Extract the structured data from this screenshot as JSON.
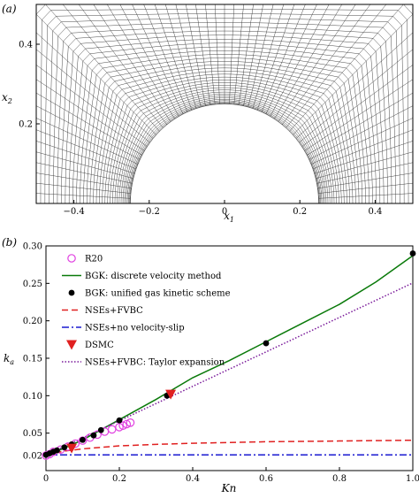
{
  "panel_a": {
    "tag": "(a)",
    "xlabel_base": "x",
    "xlabel_sub": "1",
    "ylabel_base": "x",
    "ylabel_sub": "2",
    "xlim": [
      -0.5,
      0.5
    ],
    "ylim": [
      0.0,
      0.5
    ],
    "xticks": [
      -0.4,
      -0.2,
      0,
      0.2,
      0.4
    ],
    "xtick_labels": [
      "−0.4",
      "−0.2",
      "0",
      "0.2",
      "0.4"
    ],
    "yticks": [
      0.2,
      0.4
    ],
    "ytick_labels": [
      "0.2",
      "0.4"
    ],
    "circle_radius": 0.25,
    "mesh_n_radial": 34,
    "mesh_n_angular": 62
  },
  "chart_data": {
    "type": "line",
    "tag": "(b)",
    "xlabel": "Kn",
    "ylabel_base": "k",
    "ylabel_sub": "a",
    "xlim": [
      0,
      1.0
    ],
    "ylim": [
      0.0,
      0.3
    ],
    "xticks": [
      0,
      0.2,
      0.4,
      0.6,
      0.8,
      1.0
    ],
    "xtick_labels": [
      "0",
      "0.2",
      "0.4",
      "0.6",
      "0.8",
      "1.0"
    ],
    "yticks": [
      0.02,
      0.05,
      0.1,
      0.15,
      0.2,
      0.25,
      0.3
    ],
    "ytick_labels": [
      "0.02",
      "0.05",
      "0.10",
      "0.15",
      "0.20",
      "0.25",
      "0.30"
    ],
    "legend_position": "top-left",
    "series": [
      {
        "name": "R20",
        "style": "open-circle",
        "color": "#e040e0",
        "x": [
          0.0,
          0.01,
          0.02,
          0.04,
          0.06,
          0.08,
          0.1,
          0.12,
          0.14,
          0.16,
          0.18,
          0.2,
          0.21,
          0.22,
          0.23
        ],
        "y": [
          0.02,
          0.022,
          0.025,
          0.028,
          0.032,
          0.036,
          0.04,
          0.044,
          0.048,
          0.052,
          0.055,
          0.058,
          0.06,
          0.062,
          0.064
        ]
      },
      {
        "name": "BGK: discrete velocity method",
        "style": "solid-line",
        "color": "#0a7a0a",
        "x": [
          0.0,
          0.05,
          0.1,
          0.2,
          0.3,
          0.4,
          0.5,
          0.6,
          0.7,
          0.8,
          0.9,
          1.0
        ],
        "y": [
          0.02,
          0.03,
          0.041,
          0.068,
          0.095,
          0.124,
          0.147,
          0.172,
          0.197,
          0.222,
          0.252,
          0.287
        ]
      },
      {
        "name": "BGK: unified gas kinetic scheme",
        "style": "filled-circle",
        "color": "#000000",
        "x": [
          0.0,
          0.01,
          0.02,
          0.03,
          0.05,
          0.07,
          0.1,
          0.13,
          0.15,
          0.2,
          0.33,
          0.6,
          1.0
        ],
        "y": [
          0.021,
          0.023,
          0.025,
          0.027,
          0.031,
          0.035,
          0.041,
          0.047,
          0.054,
          0.067,
          0.1,
          0.17,
          0.29
        ]
      },
      {
        "name": "NSEs+FVBC",
        "style": "dashed-line",
        "color": "#e02020",
        "x": [
          0.0,
          0.02,
          0.05,
          0.1,
          0.15,
          0.2,
          0.3,
          0.4,
          0.5,
          0.6,
          0.7,
          0.8,
          0.9,
          1.0
        ],
        "y": [
          0.02,
          0.023,
          0.026,
          0.029,
          0.031,
          0.033,
          0.035,
          0.0365,
          0.0375,
          0.0385,
          0.039,
          0.0395,
          0.04,
          0.0405
        ]
      },
      {
        "name": "NSEs+no velocity-slip",
        "style": "dashdot-line",
        "color": "#1a1ad0",
        "x": [
          0.0,
          1.0
        ],
        "y": [
          0.021,
          0.021
        ]
      },
      {
        "name": "DSMC",
        "style": "filled-triangle-down",
        "color": "#e02020",
        "x": [
          0.07,
          0.34
        ],
        "y": [
          0.03,
          0.102
        ]
      },
      {
        "name": "NSEs+FVBC: Taylor expansion",
        "style": "dotted-line",
        "color": "#7a1a9a",
        "x": [
          0.0,
          1.0
        ],
        "y": [
          0.0205,
          0.2505
        ]
      }
    ]
  }
}
